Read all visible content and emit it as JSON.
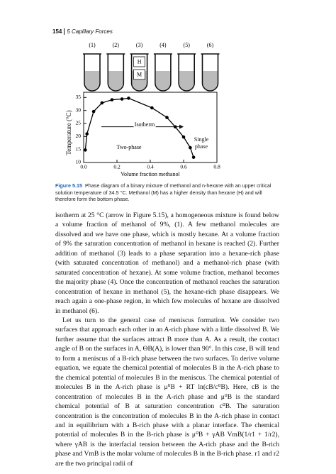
{
  "header": {
    "page": "154",
    "chapter": "5 Capillary Forces"
  },
  "figure": {
    "tubes": [
      "(1)",
      "(2)",
      "(3)",
      "(4)",
      "(5)",
      "(6)"
    ],
    "upper_phase": "H",
    "lower_phase": "M"
  },
  "chart_data": {
    "type": "line",
    "x": [
      0.01,
      0.02,
      0.06,
      0.11,
      0.17,
      0.23,
      0.27,
      0.41,
      0.5,
      0.55,
      0.6,
      0.64,
      0.66
    ],
    "values": [
      14.8,
      21,
      29.6,
      32.9,
      34.1,
      34.4,
      34.7,
      31,
      27.3,
      23.7,
      19.8,
      15.7,
      12
    ],
    "color": "#000000",
    "xlabel": "Volume fraction methanol",
    "ylabel": "Temperature (°C)",
    "xlim": [
      0,
      0.8
    ],
    "ylim": [
      10,
      37
    ],
    "xticks": [
      {
        "value": 0,
        "label": "0.0"
      },
      0.2,
      0.4,
      0.6,
      0.8
    ],
    "yticks": [
      10,
      15,
      20,
      25,
      30,
      35
    ],
    "annotations": [
      "Isotherm",
      "Two-phase",
      "Single phase"
    ]
  },
  "caption": {
    "label": "Figure 5.15",
    "text": "Phase diagram of a binary mixture of methanol and n-hexane with an upper critical solution temperature of 34.5 °C. Methanol (M) has a higher density than hexane (H) and will therefore form the bottom phase."
  },
  "paragraphs": [
    "isotherm at 25 °C (arrow in Figure 5.15), a homogeneous mixture is found below a volume fraction of methanol of 9%, (1). A few methanol molecules are dissolved and we have one phase, which is mostly hexane. At a volume fraction of 9% the saturation concentration of methanol in hexane is reached (2). Further addition of methanol (3) leads to a phase separation into a hexane-rich phase (with saturated concentration of methanol) and a methanol-rich phase (with saturated concentration of hexane). At some volume fraction, methanol becomes the majority phase (4). Once the concentration of methanol reaches the saturation concentration of hexane in methanol (5), the hexane-rich phase disappears. We reach again a one-phase region, in which few molecules of hexane are dissolved in methanol (6).",
    "Let us turn to the general case of meniscus formation. We consider two surfaces that approach each other in an A-rich phase with a little dissolved B. We further assume that the surfaces attract B more than A. As a result, the contact angle of B on the surfaces in A, ΘB(A), is lower than 90°. In this case, B will tend to form a meniscus of a B-rich phase between the two surfaces. To derive volume equation, we equate the chemical potential of molecules B in the A-rich phase to the chemical potential of molecules B in the meniscus. The chemical potential of molecules B in the A-rich phase is μ⁰B + RT ln(cB/c⁰B). Here, cB is the concentration of molecules B in the A-rich phase and μ⁰B is the standard chemical potential of B at saturation concentration c⁰B. The saturation concentration is the concentration of molecules B in the A-rich phase in contact and in equilibrium with a B-rich phase with a planar interface. The chemical potential of molecules B in the B-rich phase is μ⁰B + γAB VmB(1/r1 + 1/r2), where γAB is the interfacial tension between the A-rich phase and the B-rich phase and VmB is the molar volume of molecules B in the B-rich phase. r1 and r2 are the two principal radii of"
  ]
}
